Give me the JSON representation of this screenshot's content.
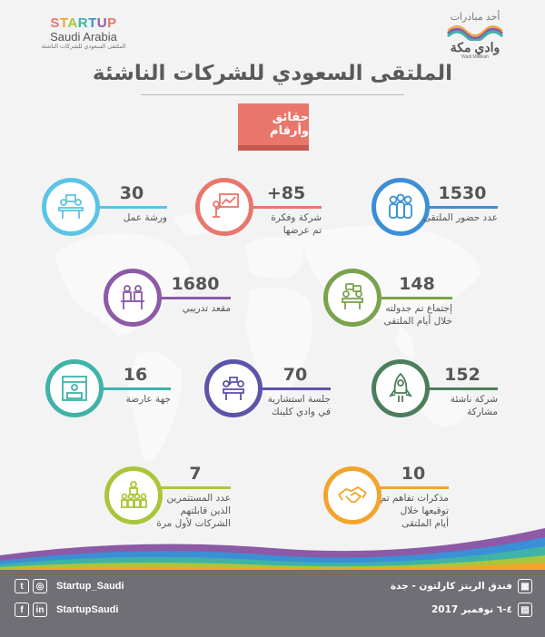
{
  "header": {
    "startup_line1": "STARTUP",
    "startup_line2": "Saudi Arabia",
    "startup_line3": "الملتقى السعودي للشركات الناشئة",
    "wadi_prefix": "أحد مبادرات",
    "wadi_name": "وادي مكة",
    "wadi_sub": "Wadi Makkah"
  },
  "title": "الملتقى السعودي للشركات الناشئة",
  "ribbon": "حقائق وأرقام",
  "colors": {
    "light_blue": "#5bc4e6",
    "salmon": "#e9766b",
    "blue": "#3b8fd6",
    "purple": "#8c5aa6",
    "green": "#7ba24d",
    "teal": "#3fb3a8",
    "indigo": "#5c54a8",
    "dark_green": "#4d7e5c",
    "lime": "#a9c63a",
    "orange": "#f2a42d"
  },
  "stats": [
    {
      "value": "30",
      "label_lines": [
        "ورشة عمل"
      ],
      "icon": "workshop-icon",
      "color": "#5bc4e6"
    },
    {
      "value": "+85",
      "label_lines": [
        "شركة وفكرة",
        "تم عرضها"
      ],
      "icon": "presentation-icon",
      "color": "#e9766b"
    },
    {
      "value": "1530",
      "label_lines": [
        "عدد حضور الملتقى"
      ],
      "icon": "people-icon",
      "color": "#3b8fd6"
    },
    {
      "value": "1680",
      "label_lines": [
        "مقعد تدريبي"
      ],
      "icon": "training-icon",
      "color": "#8c5aa6"
    },
    {
      "value": "148",
      "label_lines": [
        "إجتماع تم جدولته",
        "خلال أيام الملتقى"
      ],
      "icon": "meeting-icon",
      "color": "#7ba24d"
    },
    {
      "value": "16",
      "label_lines": [
        "جهة عارضة"
      ],
      "icon": "exhibitor-icon",
      "color": "#3fb3a8"
    },
    {
      "value": "70",
      "label_lines": [
        "جلسة استشارية",
        "في وادي كلينك"
      ],
      "icon": "consultation-icon",
      "color": "#5c54a8"
    },
    {
      "value": "152",
      "label_lines": [
        "شركة ناشئة",
        "مشاركة"
      ],
      "icon": "rocket-icon",
      "color": "#4d7e5c"
    },
    {
      "value": "7",
      "label_lines": [
        "عدد المستثمرين",
        "الذين قابلتهم",
        "الشركات لأول مرة"
      ],
      "icon": "investors-icon",
      "color": "#a9c63a"
    },
    {
      "value": "10",
      "label_lines": [
        "مذكرات تفاهم تم",
        "توقيعها خلال",
        "أيام الملتقى"
      ],
      "icon": "handshake-icon",
      "color": "#f2a42d"
    }
  ],
  "footer": {
    "handle1": "Startup_Saudi",
    "handle2": "StartupSaudi",
    "venue": "فندق الريتز كارلتون - جدة",
    "date": "٤-٦ نوفمبر 2017"
  }
}
